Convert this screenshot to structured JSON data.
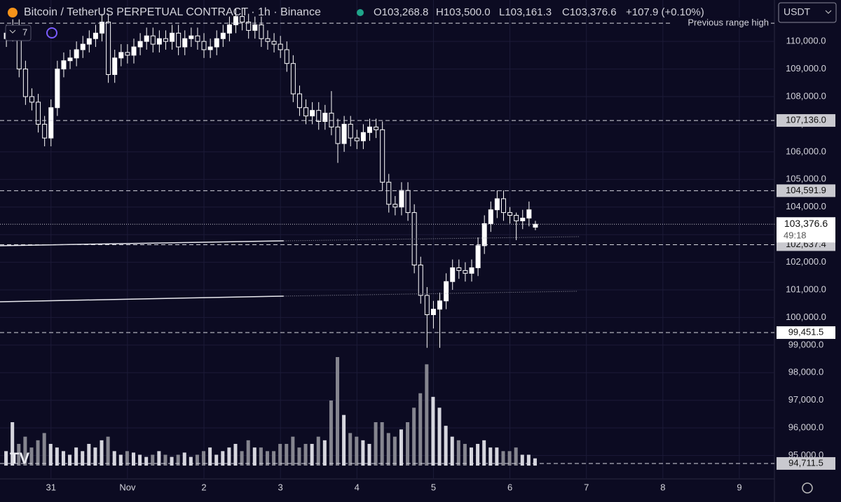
{
  "header": {
    "symbol": "Bitcoin / TetherUS PERPETUAL CONTRACT · 1h · Binance",
    "open": "O103,268.8",
    "high": "H103,500.0",
    "low": "L103,161.3",
    "close": "C103,376.6",
    "change": "+107.9 (+0.10%)",
    "currency": "USDT",
    "indicator_count": "7"
  },
  "chart_data": {
    "type": "candlestick",
    "x": [
      -14,
      -12,
      -10,
      -8,
      -6,
      -4,
      -2,
      0,
      2,
      4,
      6,
      8,
      10,
      12,
      14,
      16,
      18,
      20,
      22,
      24,
      26,
      28,
      30,
      32,
      34,
      36,
      38,
      40,
      42,
      44,
      46,
      48,
      50,
      52,
      54,
      56,
      58,
      60,
      62,
      64,
      66,
      68,
      70,
      72,
      74,
      76,
      78,
      80,
      82,
      84,
      86,
      88,
      90,
      92,
      94,
      96,
      98,
      100,
      102,
      104,
      106,
      108,
      110,
      112,
      114,
      116,
      118,
      120,
      122,
      124,
      126,
      128,
      130,
      132,
      134,
      136,
      138,
      140,
      142,
      144,
      146,
      148,
      150,
      152
    ],
    "open": [
      110100,
      110300,
      110500,
      109000,
      108000,
      107800,
      107000,
      106500,
      107600,
      109000,
      109300,
      109400,
      109700,
      109900,
      110100,
      110300,
      110700,
      108800,
      109400,
      109600,
      109500,
      109800,
      110000,
      110200,
      109900,
      110100,
      110000,
      110300,
      109800,
      110100,
      110200,
      110000,
      109700,
      109800,
      110100,
      110300,
      110600,
      110900,
      110700,
      110400,
      110600,
      110100,
      110000,
      109900,
      109700,
      109200,
      108100,
      107600,
      107300,
      107500,
      107100,
      107400,
      106900,
      106300,
      107000,
      106500,
      106400,
      106700,
      106900,
      106800,
      104900,
      104100,
      104000,
      104600,
      103800,
      101900,
      100800,
      100100,
      100300,
      100600,
      101300,
      101800,
      101700,
      101600,
      101800,
      102600,
      103400,
      103900,
      104300,
      103800,
      103700,
      103500,
      103600,
      103268.8
    ],
    "high": [
      110600,
      110800,
      110800,
      109300,
      108300,
      108100,
      107300,
      107900,
      109300,
      109600,
      109700,
      110000,
      110200,
      110400,
      110600,
      111000,
      111000,
      109700,
      109900,
      109900,
      110100,
      110300,
      110500,
      110500,
      110400,
      110400,
      110600,
      110600,
      110400,
      110500,
      110500,
      110300,
      110100,
      110400,
      110600,
      110900,
      111200,
      111200,
      111000,
      110900,
      110900,
      110400,
      110300,
      110200,
      110000,
      109500,
      108400,
      107900,
      107800,
      107800,
      107700,
      108200,
      107200,
      107300,
      107300,
      106800,
      107000,
      107200,
      107200,
      107100,
      105200,
      104400,
      104900,
      104900,
      104100,
      102200,
      101100,
      100600,
      100900,
      101600,
      102100,
      102100,
      102000,
      102100,
      102900,
      103700,
      104200,
      104600,
      104600,
      104000,
      103800,
      103900,
      104200,
      103500
    ],
    "low": [
      109800,
      110000,
      108700,
      107700,
      107500,
      106700,
      106200,
      106200,
      107300,
      108700,
      109000,
      109100,
      109400,
      109600,
      109800,
      110000,
      108500,
      108500,
      109100,
      109200,
      109200,
      109500,
      109700,
      109600,
      109600,
      109700,
      109700,
      109500,
      109500,
      109800,
      109700,
      109400,
      109400,
      109500,
      109800,
      110000,
      110300,
      110400,
      110100,
      110100,
      109800,
      109700,
      109600,
      109400,
      108900,
      107800,
      107300,
      107000,
      107000,
      106800,
      106800,
      106600,
      105600,
      106000,
      106200,
      106100,
      106100,
      106400,
      106500,
      104600,
      103800,
      103700,
      103700,
      103500,
      101600,
      100500,
      98900,
      99600,
      98900,
      100300,
      101000,
      101400,
      101300,
      101300,
      101500,
      102300,
      103100,
      103600,
      103500,
      103400,
      102800,
      103200,
      103300,
      103161.3
    ],
    "close": [
      110300,
      110500,
      109000,
      108000,
      107800,
      107000,
      106500,
      107600,
      109000,
      109300,
      109400,
      109700,
      109900,
      110100,
      110300,
      110700,
      108800,
      109400,
      109600,
      109500,
      109800,
      110000,
      110200,
      109900,
      110100,
      110000,
      110300,
      109800,
      110100,
      110200,
      110000,
      109700,
      109800,
      110100,
      110300,
      110600,
      110900,
      110700,
      110400,
      110600,
      110100,
      110000,
      109900,
      109700,
      109200,
      108100,
      107600,
      107300,
      107500,
      107100,
      107400,
      106900,
      106300,
      107000,
      106500,
      106400,
      106700,
      106900,
      106800,
      104900,
      104100,
      104000,
      104600,
      103800,
      101900,
      100800,
      100100,
      100300,
      100600,
      101300,
      101800,
      101700,
      101600,
      101800,
      102600,
      103400,
      103900,
      104300,
      103800,
      103700,
      103500,
      103600,
      103900,
      103376.6
    ],
    "volume": [
      20,
      60,
      30,
      40,
      25,
      35,
      45,
      30,
      25,
      20,
      15,
      25,
      20,
      30,
      25,
      35,
      40,
      20,
      15,
      20,
      18,
      15,
      12,
      15,
      20,
      15,
      12,
      15,
      18,
      12,
      15,
      20,
      25,
      15,
      20,
      25,
      30,
      20,
      35,
      25,
      25,
      20,
      20,
      30,
      30,
      40,
      25,
      30,
      30,
      40,
      35,
      90,
      150,
      70,
      45,
      40,
      35,
      30,
      60,
      60,
      45,
      40,
      50,
      60,
      80,
      100,
      140,
      95,
      80,
      55,
      40,
      35,
      30,
      25,
      30,
      35,
      25,
      25,
      20,
      20,
      25,
      15,
      15,
      10
    ],
    "xlim": [
      -16,
      227
    ],
    "xticks": [
      {
        "value": 0,
        "label": "31"
      },
      {
        "value": 24,
        "label": "Nov"
      },
      {
        "value": 48,
        "label": "2"
      },
      {
        "value": 72,
        "label": "3"
      },
      {
        "value": 96,
        "label": "4"
      },
      {
        "value": 120,
        "label": "5"
      },
      {
        "value": 144,
        "label": "6"
      },
      {
        "value": 168,
        "label": "7"
      },
      {
        "value": 192,
        "label": "8"
      },
      {
        "value": 216,
        "label": "9"
      }
    ],
    "ylim": [
      94000,
      111500
    ],
    "yticks": [
      {
        "value": 95000,
        "label": "95,000.0"
      },
      {
        "value": 96000,
        "label": "96,000.0"
      },
      {
        "value": 97000,
        "label": "97,000.0"
      },
      {
        "value": 98000,
        "label": "98,000.0"
      },
      {
        "value": 99000,
        "label": "99,000.0"
      },
      {
        "value": 100000,
        "label": "100,000.0"
      },
      {
        "value": 101000,
        "label": "101,000.0"
      },
      {
        "value": 102000,
        "label": "102,000.0"
      },
      {
        "value": 103000,
        "label": "103,000.0"
      },
      {
        "value": 104000,
        "label": "104,000.0"
      },
      {
        "value": 105000,
        "label": "105,000.0"
      },
      {
        "value": 106000,
        "label": "106,000.0"
      },
      {
        "value": 107000,
        "label": "107,000.0"
      },
      {
        "value": 108000,
        "label": "108,000.0"
      },
      {
        "value": 109000,
        "label": "109,000.0"
      },
      {
        "value": 110000,
        "label": "110,000.0"
      }
    ],
    "grid": true,
    "levels": [
      {
        "value": 107136,
        "label": "107,136.0"
      },
      {
        "value": 104591.9,
        "label": "104,591.9"
      },
      {
        "value": 102637.4,
        "label": "102,637.4"
      },
      {
        "value": 99451.5,
        "label": "99,451.5"
      },
      {
        "value": 94711.5,
        "label": "94,711.5"
      }
    ],
    "previous_range_high": {
      "value": 110660,
      "label": "Previous range high"
    },
    "last_price": {
      "value": 103376.6,
      "label": "103,376.6"
    },
    "countdown": "49:18",
    "trendlines": [
      {
        "x": [
          -16,
          73,
          166
        ],
        "y": [
          102598,
          102775,
          102928
        ]
      },
      {
        "x": [
          -16,
          73,
          165
        ],
        "y": [
          100570,
          100773,
          100950
        ]
      }
    ]
  }
}
